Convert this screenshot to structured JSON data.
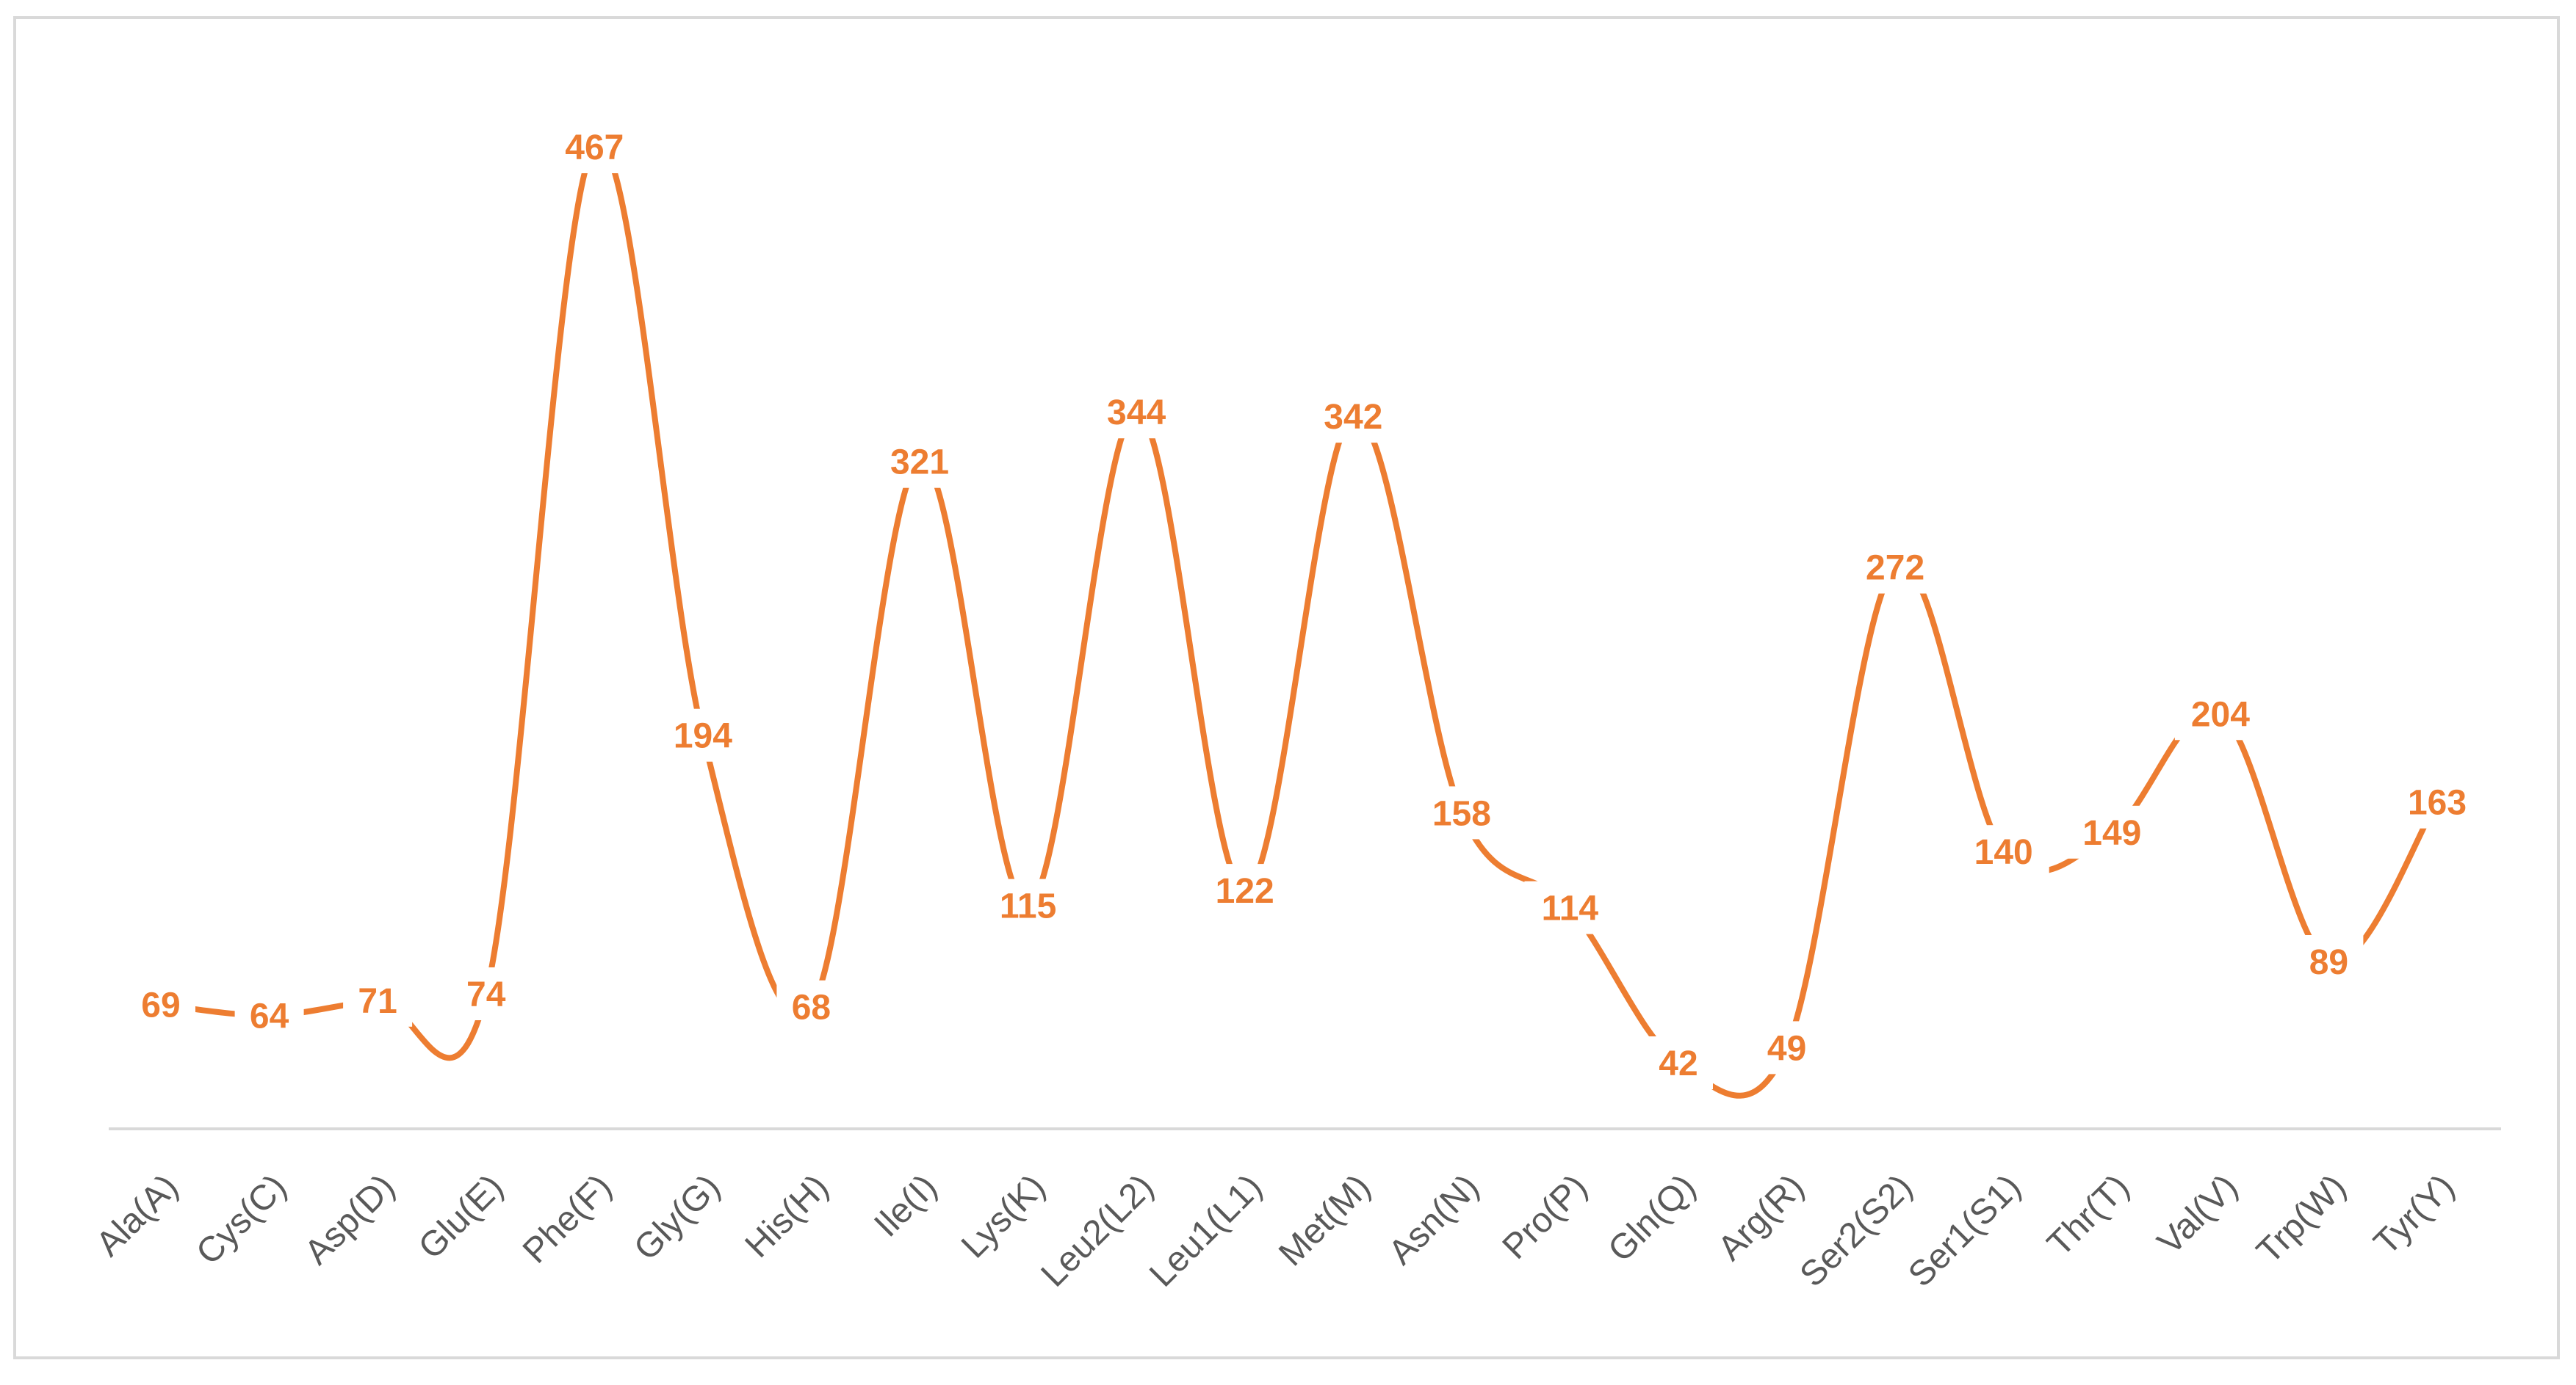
{
  "chart_data": {
    "type": "line",
    "smooth": true,
    "title": "",
    "xlabel": "",
    "ylabel": "",
    "legend": "none",
    "grid": false,
    "y_axis_visible": false,
    "ylim": [
      0,
      500
    ],
    "categories": [
      "Ala(A)",
      "Cys(C)",
      "Asp(D)",
      "Glu(E)",
      "Phe(F)",
      "Gly(G)",
      "His(H)",
      "Ile(I)",
      "Lys(K)",
      "Leu2(L2)",
      "Leu1(L1)",
      "Met(M)",
      "Asn(N)",
      "Pro(P)",
      "Gln(Q)",
      "Arg(R)",
      "Ser2(S2)",
      "Ser1(S1)",
      "Thr(T)",
      "Val(V)",
      "Trp(W)",
      "Tyr(Y)"
    ],
    "series": [
      {
        "values": [
          69,
          64,
          71,
          74,
          467,
          194,
          68,
          321,
          115,
          344,
          122,
          342,
          158,
          114,
          42,
          49,
          272,
          140,
          149,
          204,
          89,
          163
        ]
      }
    ],
    "data_labels": [
      "69",
      "64",
      "71",
      "74",
      "467",
      "194",
      "68",
      "321",
      "115",
      "344",
      "122",
      "342",
      "158",
      "114",
      "42",
      "49",
      "272",
      "140",
      "149",
      "204",
      "89",
      "163"
    ],
    "colors": {
      "series": "#ed7d31",
      "axis": "#d9d9d9",
      "tick_text": "#595959",
      "border": "#d9d9d9"
    }
  }
}
